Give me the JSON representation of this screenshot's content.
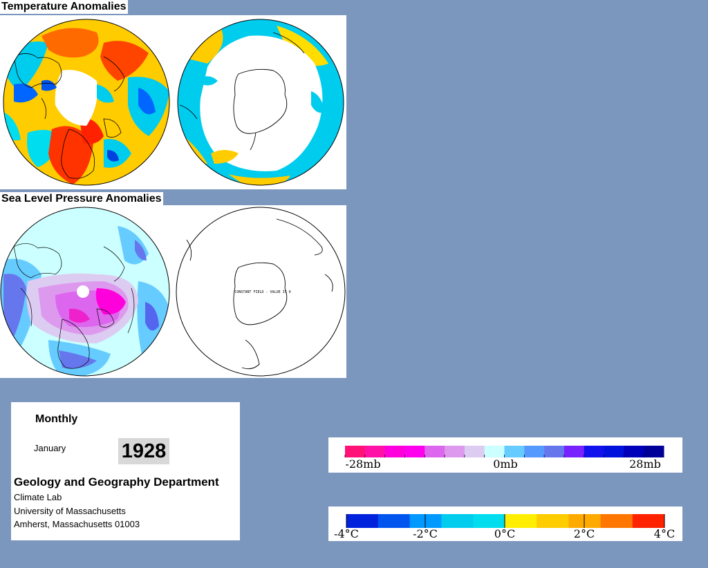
{
  "temperature": {
    "title": "Temperature Anomalies"
  },
  "pressure": {
    "title": "Sea Level Pressure Anomalies",
    "sh_note": "CONSTANT FIELD - VALUE IS 0"
  },
  "info": {
    "period": "Monthly",
    "month": "January",
    "year": "1928",
    "department": "Geology and Geography Department",
    "lab": "Climate Lab",
    "university": "University of Massachusetts",
    "city": "Amherst, Massachusetts 01003"
  },
  "legends": {
    "pressure": {
      "labels": [
        "-28mb",
        "0mb",
        "28mb"
      ],
      "colors": [
        "#ff1177",
        "#ff11a8",
        "#ff00dd",
        "#ff00ee",
        "#dd66ee",
        "#dd99ee",
        "#ddccf2",
        "#ccffff",
        "#66ccff",
        "#5599ff",
        "#6677ee",
        "#7722ff",
        "#1111ee",
        "#0011dd",
        "#0000bb",
        "#000099"
      ]
    },
    "temperature": {
      "labels": [
        "-4°C",
        "-2°C",
        "0°C",
        "2°C",
        "4°C"
      ],
      "colors_neg": [
        "#0022dd",
        "#0055ee",
        "#0099ff",
        "#00ccee",
        "#00ddee"
      ],
      "colors_pos": [
        "#ffee00",
        "#ffcc00",
        "#ffaa00",
        "#ff7700",
        "#ff2200"
      ]
    }
  }
}
